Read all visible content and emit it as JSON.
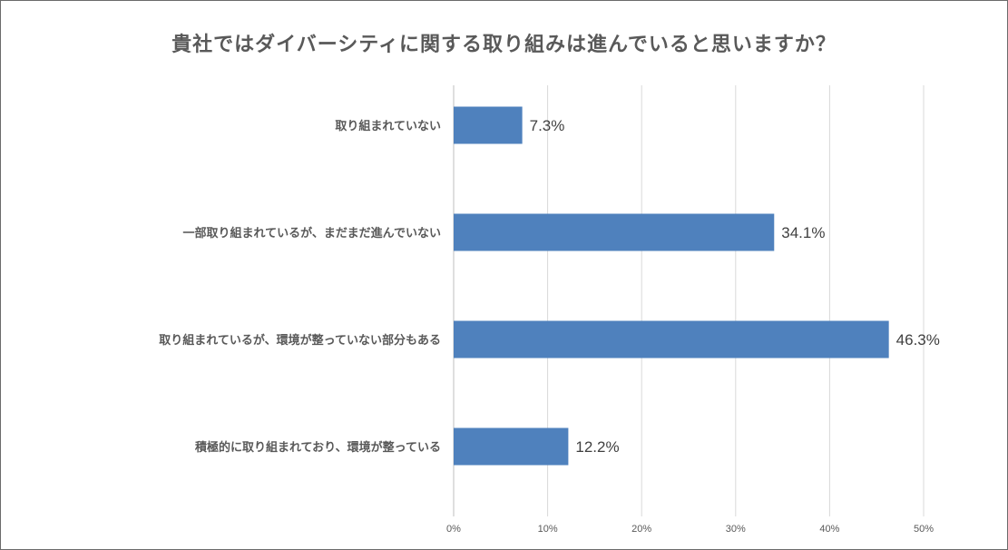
{
  "chart_data": {
    "type": "bar",
    "orientation": "horizontal",
    "title": "貴社ではダイバーシティに関する取り組みは進んでいると思いますか？",
    "categories": [
      "取り組まれていない",
      "一部取り組まれているが、まだまだ進んでいない",
      "取り組まれているが、環境が整っていない部分もある",
      "積極的に取り組まれており、環境が整っている"
    ],
    "values": [
      7.3,
      34.1,
      46.3,
      12.2
    ],
    "value_labels": [
      "7.3%",
      "34.1%",
      "46.3%",
      "12.2%"
    ],
    "x_ticks": [
      "0%",
      "10%",
      "20%",
      "30%",
      "40%",
      "50%"
    ],
    "xlim": [
      0,
      50
    ],
    "xlabel": "",
    "ylabel": "",
    "grid": true,
    "legend": "none",
    "bar_color": "#4f81bd"
  }
}
